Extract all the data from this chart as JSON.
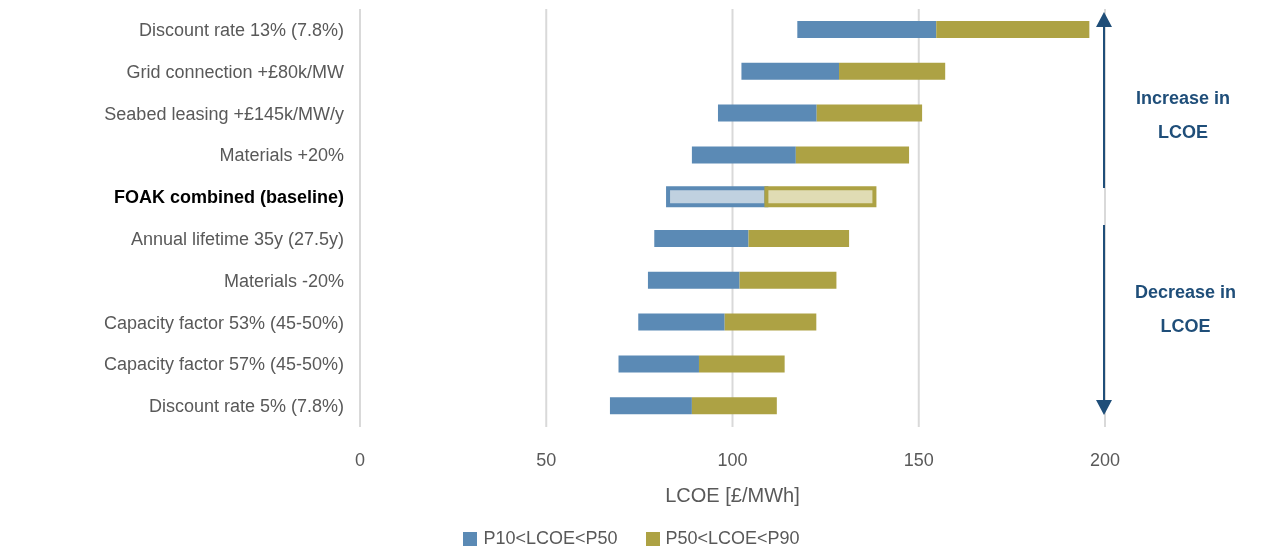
{
  "chart_data": {
    "type": "bar",
    "orientation": "horizontal",
    "stacked": true,
    "categories": [
      "Discount rate 13% (7.8%)",
      "Grid connection +£80k/MW",
      "Seabed leasing +£145k/MW/y",
      "Materials +20%",
      "FOAK combined (baseline)",
      "Annual lifetime 35y (27.5y)",
      "Materials -20%",
      "Capacity factor 53% (45-50%)",
      "Capacity factor 57% (45-50%)",
      "Discount rate 5% (7.8%)"
    ],
    "series": [
      {
        "name": "P10<LCOE<P50",
        "color": "#5b8ab5",
        "base": [
          117.4,
          102.4,
          96.1,
          89.1,
          82.7,
          79.0,
          77.3,
          74.7,
          69.4,
          67.1
        ],
        "colors": [
          "#5b8ab5",
          "#5b8ab5",
          "#5b8ab5",
          "#5b8ab5",
          "#c0d1e0",
          "#5b8ab5",
          "#5b8ab5",
          "#5b8ab5",
          "#5b8ab5",
          "#5b8ab5"
        ],
        "values": [
          37.3,
          26.2,
          26.5,
          27.9,
          26.4,
          25.3,
          24.6,
          23.2,
          21.6,
          22.0
        ]
      },
      {
        "name": "P50<LCOE<P90",
        "color": "#ada244",
        "colors": [
          "#ada244",
          "#ada244",
          "#ada244",
          "#ada244",
          "#e0dcb4",
          "#ada244",
          "#ada244",
          "#ada244",
          "#ada244",
          "#ada244"
        ],
        "values": [
          41.1,
          28.5,
          28.3,
          30.4,
          29.0,
          27.0,
          26.0,
          24.6,
          23.0,
          22.8
        ]
      }
    ],
    "xlabel": "LCOE [£/MWh]",
    "xlim": [
      0,
      200
    ],
    "xticks": [
      0,
      50,
      100,
      150,
      200
    ],
    "grid": "x",
    "legend": "bottom",
    "annotations": [
      "Increase in LCOE",
      "Decrease in LCOE"
    ]
  }
}
